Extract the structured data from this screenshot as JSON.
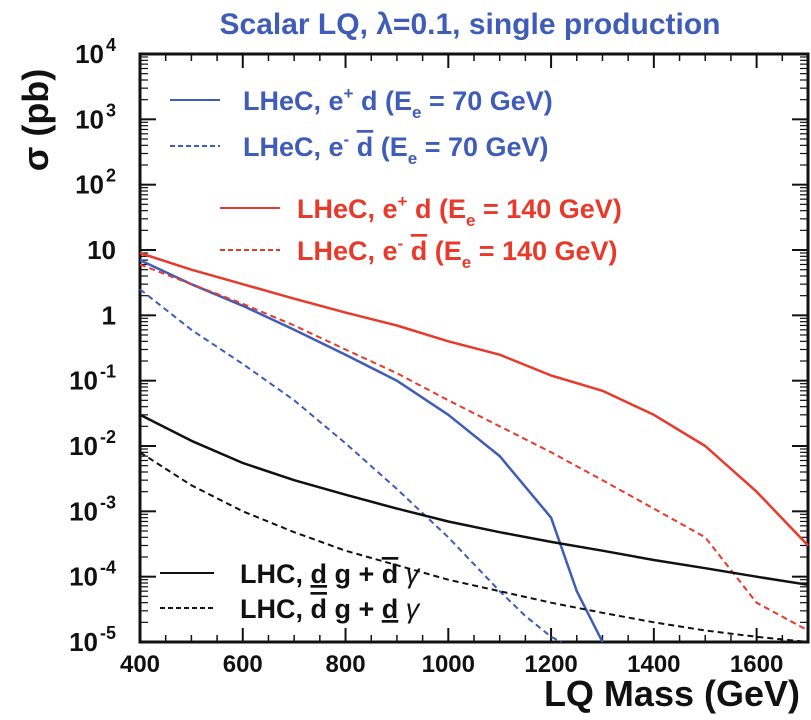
{
  "chart_data": {
    "type": "line",
    "title": "Scalar LQ, λ=0.1, single production",
    "xlabel": "LQ Mass (GeV)",
    "ylabel": "σ (pb)",
    "xlim": [
      400,
      1700
    ],
    "ylim": [
      1e-05,
      10000.0
    ],
    "yscale": "log",
    "x_ticks": [
      400,
      600,
      800,
      1000,
      1200,
      1400,
      1600
    ],
    "y_ticks": [
      {
        "value": 10000.0,
        "base": "10",
        "exp": "4"
      },
      {
        "value": 1000.0,
        "base": "10",
        "exp": "3"
      },
      {
        "value": 100.0,
        "base": "10",
        "exp": "2"
      },
      {
        "value": 10,
        "base": "10",
        "exp": ""
      },
      {
        "value": 1,
        "base": "1",
        "exp": ""
      },
      {
        "value": 0.1,
        "base": "10",
        "exp": "-1"
      },
      {
        "value": 0.01,
        "base": "10",
        "exp": "-2"
      },
      {
        "value": 0.001,
        "base": "10",
        "exp": "-3"
      },
      {
        "value": 0.0001,
        "base": "10",
        "exp": "-4"
      },
      {
        "value": 1e-05,
        "base": "10",
        "exp": "-5"
      }
    ],
    "grid": false,
    "legend_position": "top-left",
    "colors": {
      "blue": "#3f5cb8",
      "red": "#e8392b",
      "black": "#111111",
      "title": "#3f5cb8"
    },
    "series": [
      {
        "legend": {
          "main": "LHeC, e",
          "sup": "+",
          "particle": "d",
          "bar": false,
          "energy": "(E",
          "sub": "e",
          "energy_rest": " = 70 GeV)"
        },
        "color": "blue",
        "style": "solid",
        "x": [
          400,
          500,
          600,
          700,
          800,
          900,
          1000,
          1100,
          1200,
          1250,
          1300
        ],
        "y": [
          7,
          3,
          1.4,
          0.6,
          0.25,
          0.1,
          0.03,
          0.007,
          0.0008,
          6e-05,
          1e-05
        ]
      },
      {
        "legend": {
          "main": "LHeC, e",
          "sup": "-",
          "particle": "d",
          "bar": true,
          "energy": "(E",
          "sub": "e",
          "energy_rest": " = 70 GeV)"
        },
        "color": "blue",
        "style": "dashed",
        "x": [
          400,
          500,
          600,
          700,
          800,
          900,
          1000,
          1100,
          1150,
          1200,
          1220
        ],
        "y": [
          2.5,
          0.6,
          0.18,
          0.05,
          0.011,
          0.0022,
          0.0004,
          6e-05,
          2.5e-05,
          1.2e-05,
          1e-05
        ]
      },
      {
        "legend": {
          "main": "LHeC, e",
          "sup": "+",
          "particle": "d",
          "bar": false,
          "energy": "(E",
          "sub": "e",
          "energy_rest": " = 140 GeV)"
        },
        "color": "red",
        "style": "solid",
        "x": [
          400,
          500,
          600,
          700,
          800,
          900,
          1000,
          1100,
          1200,
          1300,
          1400,
          1500,
          1600,
          1700
        ],
        "y": [
          9,
          5,
          3,
          1.8,
          1.1,
          0.7,
          0.4,
          0.25,
          0.12,
          0.07,
          0.03,
          0.01,
          0.002,
          0.0003
        ]
      },
      {
        "legend": {
          "main": "LHeC, e",
          "sup": "-",
          "particle": "d",
          "bar": true,
          "energy": "(E",
          "sub": "e",
          "energy_rest": " = 140 GeV)"
        },
        "color": "red",
        "style": "dashed",
        "x": [
          400,
          500,
          600,
          700,
          800,
          900,
          1000,
          1100,
          1200,
          1300,
          1400,
          1500,
          1600,
          1700
        ],
        "y": [
          6,
          3,
          1.5,
          0.7,
          0.3,
          0.13,
          0.05,
          0.02,
          0.008,
          0.003,
          0.0011,
          0.0004,
          4e-05,
          1.5e-05
        ]
      },
      {
        "legend": {
          "main": "LHC,",
          "tail": "g + ",
          "tail_particle": "d",
          "gamma": "γ",
          "particle_bar": false
        },
        "color": "black",
        "style": "solid",
        "x": [
          400,
          500,
          600,
          700,
          800,
          900,
          1000,
          1100,
          1200,
          1300,
          1400,
          1500,
          1600,
          1700
        ],
        "y": [
          0.03,
          0.012,
          0.0055,
          0.003,
          0.0018,
          0.0011,
          0.0007,
          0.00048,
          0.00034,
          0.00025,
          0.00018,
          0.000135,
          0.0001,
          7.5e-05
        ]
      },
      {
        "legend": {
          "main": "LHC,",
          "tail": "g + ",
          "tail_particle": "d",
          "gamma": "γ",
          "particle_bar": true
        },
        "color": "black",
        "style": "dashed",
        "x": [
          400,
          500,
          600,
          700,
          800,
          900,
          1000,
          1100,
          1200,
          1300,
          1400,
          1500,
          1600,
          1700
        ],
        "y": [
          0.008,
          0.0025,
          0.001,
          0.00048,
          0.00025,
          0.00015,
          9e-05,
          6e-05,
          4e-05,
          2.8e-05,
          2e-05,
          1.5e-05,
          1.2e-05,
          1e-05
        ]
      }
    ]
  }
}
